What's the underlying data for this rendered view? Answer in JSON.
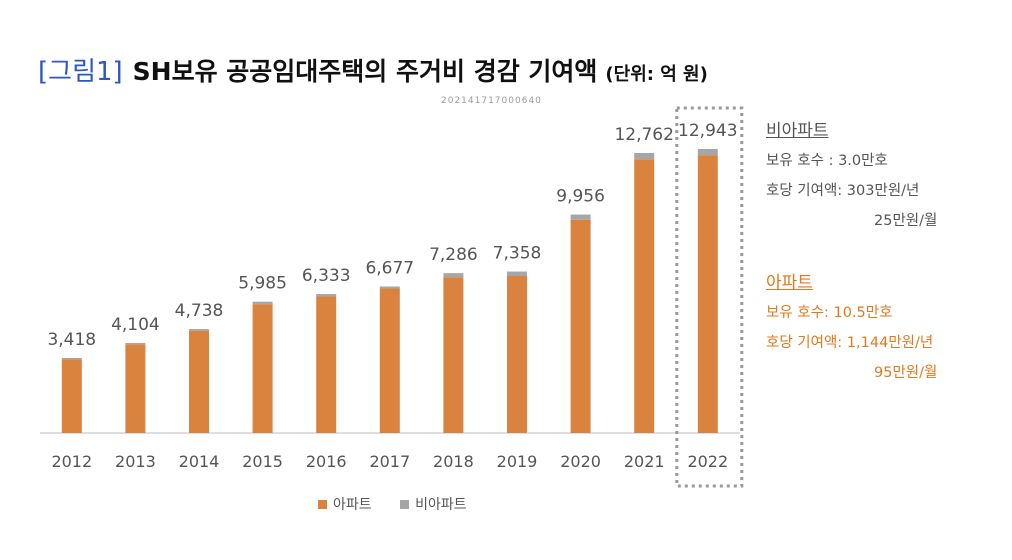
{
  "title": {
    "prefix": "[그림1]",
    "main": "SH보유 공공임대주택의 주거비 경감 기여액",
    "unit": "(단위: 억 원)"
  },
  "watermark_text": "202141717000640",
  "chart_data": {
    "type": "bar",
    "stacked": true,
    "categories": [
      "2012",
      "2013",
      "2014",
      "2015",
      "2016",
      "2017",
      "2018",
      "2019",
      "2020",
      "2021",
      "2022"
    ],
    "series": [
      {
        "name": "아파트",
        "color": "#d9833e",
        "values": [
          3355,
          4040,
          4655,
          5870,
          6223,
          6584,
          7093,
          7155,
          9721,
          12472,
          12650
        ]
      },
      {
        "name": "비아파트",
        "color": "#a6a6a6",
        "values": [
          63,
          64,
          83,
          115,
          110,
          93,
          193,
          203,
          235,
          290,
          293
        ]
      }
    ],
    "totals": [
      3418,
      4104,
      4738,
      5985,
      6333,
      6677,
      7286,
      7358,
      9956,
      12762,
      12943
    ],
    "total_labels": [
      "3,418",
      "4,104",
      "4,738",
      "5,985",
      "6,333",
      "6,677",
      "7,286",
      "7,358",
      "9,956",
      "12,762",
      "12,943"
    ],
    "highlight_category": "2022",
    "ylim": [
      0,
      15000
    ],
    "legend": [
      "아파트",
      "비아파트"
    ],
    "xlabel": "",
    "ylabel": ""
  },
  "side_notes": {
    "non_apartment": {
      "heading": "비아파트",
      "households": "보유 호수  :   3.0만호",
      "contribution_year": "호당 기여액: 303만원/년",
      "contribution_month": "25만원/월"
    },
    "apartment": {
      "heading": "아파트",
      "households": "보유 호수:   10.5만호",
      "contribution_year": "호당 기여액: 1,144만원/년",
      "contribution_month": "95만원/월"
    }
  },
  "legend": {
    "apartment": "아파트",
    "non_apartment": "비아파트",
    "apartment_color": "#d9833e",
    "non_apartment_color": "#a6a6a6"
  }
}
